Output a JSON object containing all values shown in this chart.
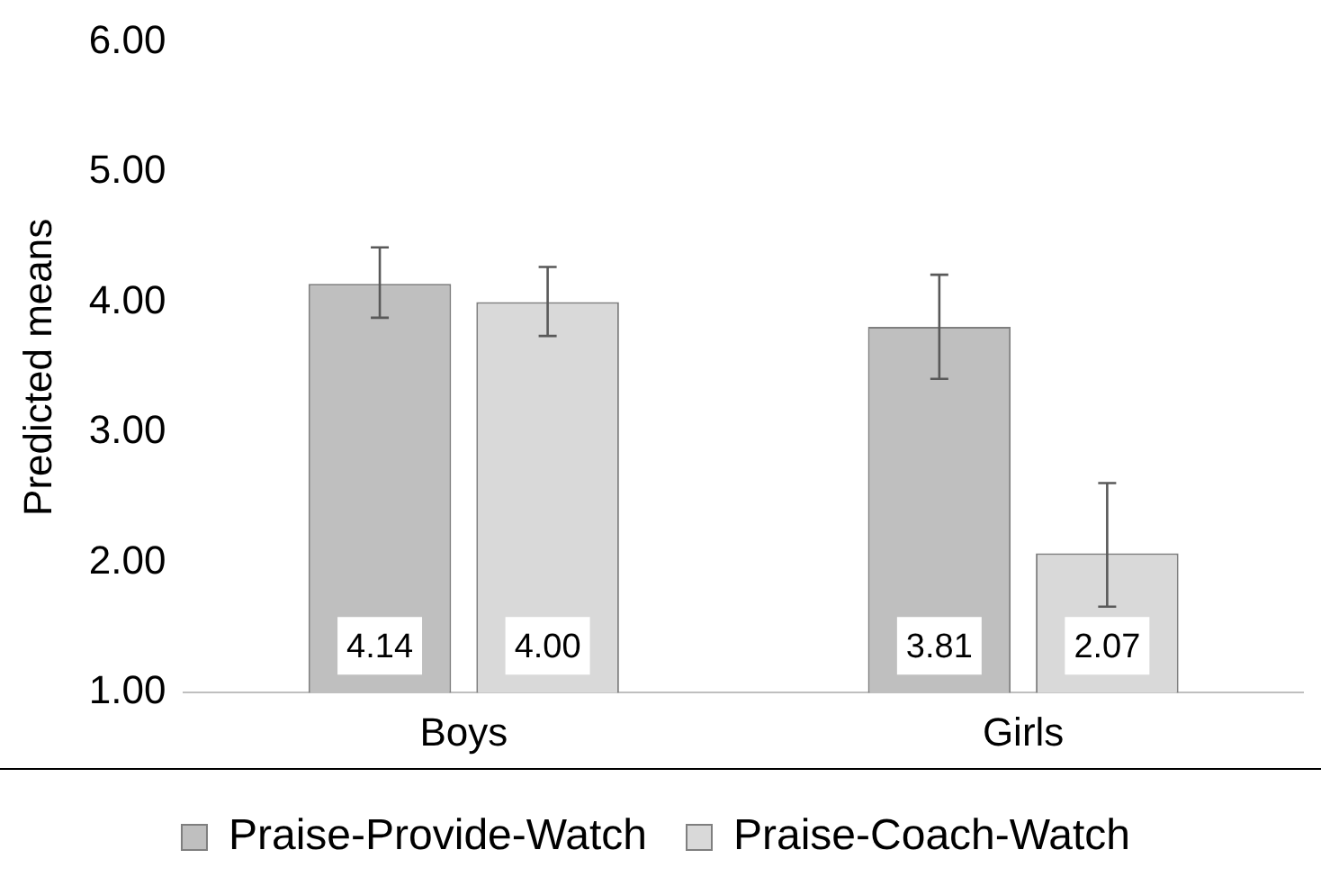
{
  "chart_data": {
    "type": "bar",
    "ylabel": "Predicted means",
    "categories": [
      "Boys",
      "Girls"
    ],
    "series": [
      {
        "name": "Praise-Provide-Watch",
        "color": "#bfbfbf",
        "values": [
          4.14,
          3.81
        ],
        "value_labels": [
          "4.14",
          "3.81"
        ],
        "errors": [
          [
            3.88,
            4.42
          ],
          [
            3.41,
            4.21
          ]
        ]
      },
      {
        "name": "Praise-Coach-Watch",
        "color": "#d9d9d9",
        "values": [
          4.0,
          2.07
        ],
        "value_labels": [
          "4.00",
          "2.07"
        ],
        "errors": [
          [
            3.74,
            4.27
          ],
          [
            1.66,
            2.61
          ]
        ]
      }
    ],
    "ylim": [
      1,
      6
    ],
    "yticks": [
      {
        "value": 1,
        "label": "1.00"
      },
      {
        "value": 2,
        "label": "2.00"
      },
      {
        "value": 3,
        "label": "3.00"
      },
      {
        "value": 4,
        "label": "4.00"
      },
      {
        "value": 5,
        "label": "5.00"
      },
      {
        "value": 6,
        "label": "6.00"
      }
    ],
    "grid": false,
    "legend": "bottom"
  }
}
